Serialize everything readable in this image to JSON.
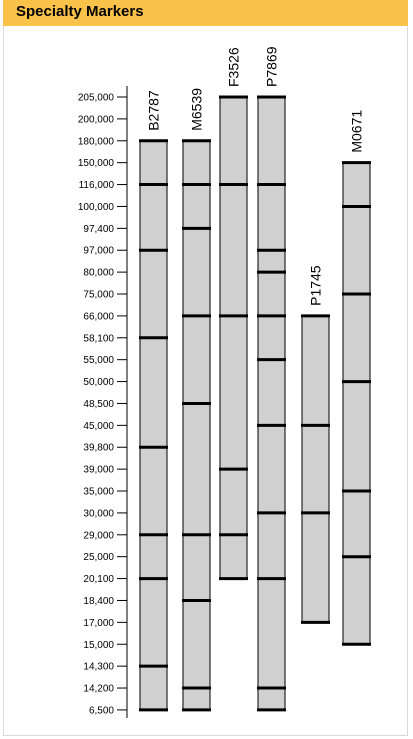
{
  "header": {
    "title": "Specialty Markers"
  },
  "chart_data": {
    "type": "diagram",
    "title": "Specialty Markers",
    "tick_labels": [
      "205,000",
      "200,000",
      "180,000",
      "150,000",
      "116,000",
      "100,000",
      "97,400",
      "97,000",
      "80,000",
      "75,000",
      "66,000",
      "58,100",
      "55,000",
      "50,000",
      "48,500",
      "45,000",
      "39,800",
      "39,000",
      "35,000",
      "30,000",
      "29,000",
      "25,000",
      "20,100",
      "18,400",
      "17,000",
      "15,000",
      "14,300",
      "14,200",
      "6,500"
    ],
    "colors": {
      "header": "#fbc24a",
      "lane_fill": "#d0d0d0",
      "band": "#000000"
    },
    "markers": [
      {
        "name": "B2787",
        "bands": [
          "180,000",
          "116,000",
          "97,000",
          "58,100",
          "39,800",
          "29,000",
          "20,100",
          "14,300",
          "6,500"
        ]
      },
      {
        "name": "M6539",
        "bands": [
          "180,000",
          "116,000",
          "97,400",
          "66,000",
          "48,500",
          "29,000",
          "18,400",
          "14,200",
          "6,500"
        ]
      },
      {
        "name": "F3526",
        "bands": [
          "205,000",
          "116,000",
          "66,000",
          "39,000",
          "29,000",
          "20,100"
        ]
      },
      {
        "name": "P7869",
        "bands": [
          "205,000",
          "116,000",
          "97,000",
          "80,000",
          "66,000",
          "55,000",
          "45,000",
          "30,000",
          "20,100",
          "14,200",
          "6,500"
        ]
      },
      {
        "name": "P1745",
        "bands": [
          "66,000",
          "45,000",
          "30,000",
          "17,000"
        ]
      },
      {
        "name": "M0671",
        "bands": [
          "150,000",
          "100,000",
          "75,000",
          "50,000",
          "35,000",
          "25,000",
          "15,000"
        ]
      }
    ]
  }
}
